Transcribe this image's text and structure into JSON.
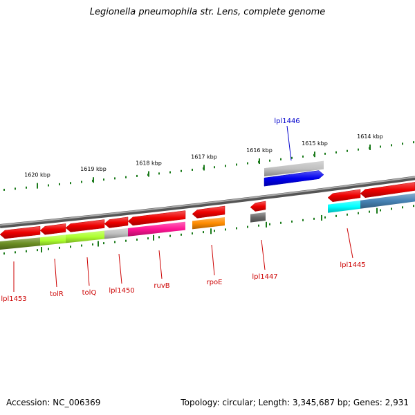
{
  "title": "Legionella pneumophila str. Lens, complete genome",
  "footer": {
    "accession": "Accession: NC_006369",
    "summary": "Topology: circular; Length: 3,345,687 bp; Genes: 2,931"
  },
  "colors": {
    "backbone": "#777777",
    "tick": "#1a7a1a",
    "label_forward": "#0000cc",
    "label_reverse": "#cc0000"
  },
  "scale_labels": [
    "1620 kbp",
    "1619 kbp",
    "1618 kbp",
    "1617 kbp",
    "1616 kbp",
    "1615 kbp",
    "1614 kbp"
  ],
  "genes": [
    {
      "name": "lpl1453",
      "strand": "reverse",
      "color": "#ee0000",
      "cds_color": "#6b8e23"
    },
    {
      "name": "tolR",
      "strand": "reverse",
      "color": "#ee0000",
      "cds_color": "#adff2f"
    },
    {
      "name": "tolQ",
      "strand": "reverse",
      "color": "#ee0000",
      "cds_color": "#adff2f"
    },
    {
      "name": "lpl1450",
      "strand": "reverse",
      "color": "#ee0000",
      "cds_color": "#c0c0c0"
    },
    {
      "name": "ruvB",
      "strand": "reverse",
      "color": "#ee0000",
      "cds_color": "#ff1493"
    },
    {
      "name": "rpoE",
      "strand": "reverse",
      "color": "#ee0000",
      "cds_color": "#ff8c00"
    },
    {
      "name": "lpl1447",
      "strand": "reverse",
      "color": "#ee0000",
      "cds_color": "#696969"
    },
    {
      "name": "lpl1446",
      "strand": "forward",
      "color": "#0000ee",
      "cds_color": "#c0c0c0"
    },
    {
      "name": "lpl1445",
      "strand": "reverse",
      "color": "#ee0000",
      "cds_color": "#00ffff"
    },
    {
      "name": "",
      "strand": "reverse",
      "color": "#ee0000",
      "cds_color": "#4682b4"
    }
  ]
}
